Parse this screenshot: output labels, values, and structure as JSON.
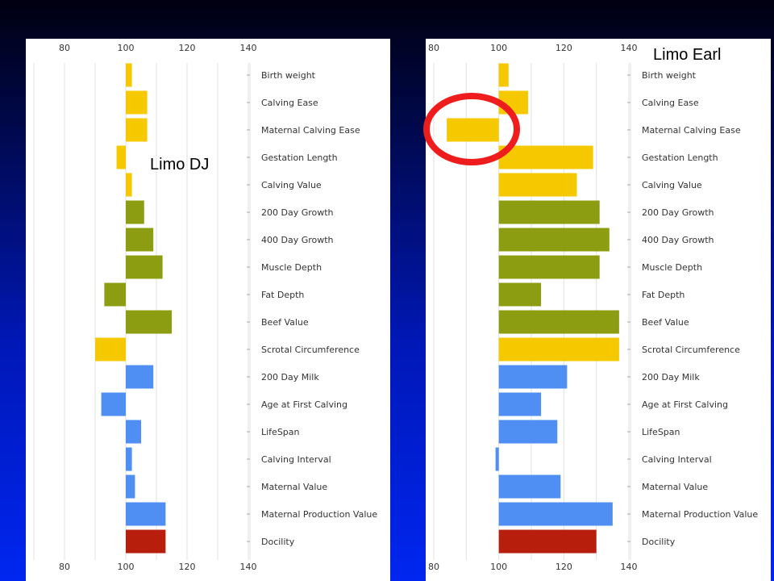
{
  "chart_data": [
    {
      "type": "bar",
      "title": "",
      "xlabel": "",
      "ylabel": "",
      "baseline": 100,
      "xlim": [
        70,
        140
      ],
      "ticks": [
        80,
        100,
        120,
        140
      ],
      "grid": true,
      "categories": [
        "Birth weight",
        "Calving Ease",
        "Maternal Calving Ease",
        "Gestation Length",
        "Calving Value",
        "200 Day Growth",
        "400 Day Growth",
        "Muscle Depth",
        "Fat Depth",
        "Beef Value",
        "Scrotal Circumference",
        "200 Day Milk",
        "Age at First Calving",
        "LifeSpan",
        "Calving Interval",
        "Maternal Value",
        "Maternal Production Value",
        "Docility"
      ],
      "values": [
        102,
        107,
        107,
        97,
        102,
        106,
        109,
        112,
        93,
        115,
        90,
        109,
        92,
        105,
        102,
        103,
        113,
        113
      ],
      "colors": [
        "#f6c800",
        "#f6c800",
        "#f6c800",
        "#f6c800",
        "#f6c800",
        "#8d9d12",
        "#8d9d12",
        "#8d9d12",
        "#8d9d12",
        "#8d9d12",
        "#f6c800",
        "#4f8ef2",
        "#4f8ef2",
        "#4f8ef2",
        "#4f8ef2",
        "#4f8ef2",
        "#4f8ef2",
        "#b81e0c"
      ]
    },
    {
      "type": "bar",
      "title": "",
      "xlabel": "",
      "ylabel": "",
      "baseline": 100,
      "xlim": [
        80,
        140
      ],
      "ticks": [
        80,
        100,
        120,
        140
      ],
      "grid": true,
      "categories": [
        "Birth weight",
        "Calving Ease",
        "Maternal Calving Ease",
        "Gestation Length",
        "Calving Value",
        "200 Day Growth",
        "400 Day Growth",
        "Muscle Depth",
        "Fat Depth",
        "Beef Value",
        "Scrotal Circumference",
        "200 Day Milk",
        "Age at First Calving",
        "LifeSpan",
        "Calving Interval",
        "Maternal Value",
        "Maternal Production Value",
        "Docility"
      ],
      "values": [
        103,
        109,
        84,
        129,
        124,
        131,
        134,
        131,
        113,
        137,
        137,
        121,
        113,
        118,
        99,
        119,
        135,
        130
      ],
      "colors": [
        "#f6c800",
        "#f6c800",
        "#f6c800",
        "#f6c800",
        "#f6c800",
        "#8d9d12",
        "#8d9d12",
        "#8d9d12",
        "#8d9d12",
        "#8d9d12",
        "#f6c800",
        "#4f8ef2",
        "#4f8ef2",
        "#4f8ef2",
        "#4f8ef2",
        "#4f8ef2",
        "#4f8ef2",
        "#b81e0c"
      ]
    }
  ],
  "annotations": {
    "left_label": "Limo DJ",
    "right_label": "Limo Earl",
    "circle_color": "#ee1c1c"
  }
}
